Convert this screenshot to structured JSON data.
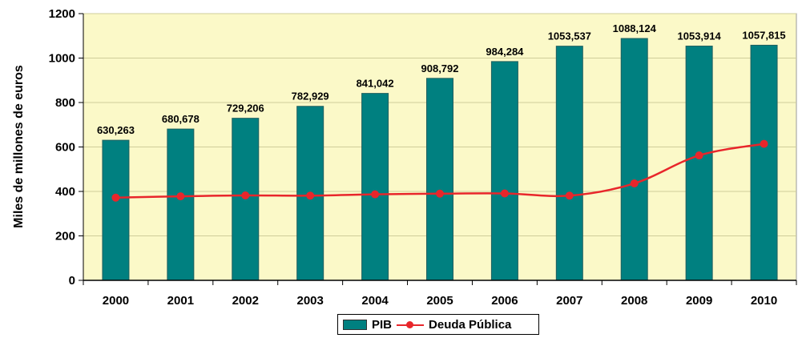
{
  "chart_data": {
    "type": "bar",
    "ylabel": "Miles de millones de euros",
    "ylim": [
      0,
      1200
    ],
    "yticks": [
      "0",
      "200",
      "400",
      "600",
      "800",
      "1000",
      "1200"
    ],
    "categories": [
      "2000",
      "2001",
      "2002",
      "2003",
      "2004",
      "2005",
      "2006",
      "2007",
      "2008",
      "2009",
      "2010"
    ],
    "series": [
      {
        "name": "PIB",
        "kind": "bar",
        "color": "#008080",
        "values": [
          630.263,
          680.678,
          729.206,
          782.929,
          841.042,
          908.792,
          984.284,
          1053.537,
          1088.124,
          1053.914,
          1057.815
        ],
        "labels": [
          "630,263",
          "680,678",
          "729,206",
          "782,929",
          "841,042",
          "908,792",
          "984,284",
          "1053,537",
          "1088,124",
          "1053,914",
          "1057,815"
        ]
      },
      {
        "name": "Deuda Pública",
        "kind": "line",
        "color": "#e8262b",
        "values": [
          372,
          378,
          382,
          381,
          387,
          390,
          391,
          381,
          436,
          562,
          614
        ]
      }
    ],
    "plot_background": "#fbf9c8",
    "legend_position": "bottom"
  }
}
